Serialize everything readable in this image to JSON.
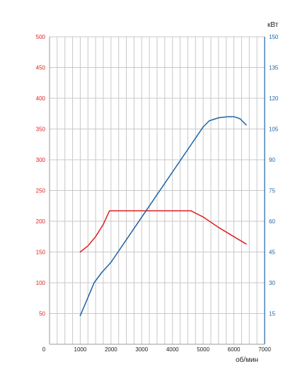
{
  "chart_data": {
    "type": "line",
    "title": "",
    "xlabel": "об/мин",
    "xlim": [
      0,
      7000
    ],
    "x_ticks": [
      "0",
      "1000",
      "2000",
      "3000",
      "4000",
      "5000",
      "6000",
      "7000"
    ],
    "y_left": {
      "label": "",
      "lim": [
        0,
        500
      ],
      "ticks": [
        "50",
        "100",
        "150",
        "200",
        "250",
        "300",
        "350",
        "400",
        "450",
        "500"
      ],
      "color": "#e02020"
    },
    "y_right": {
      "label": "кВт",
      "lim": [
        0,
        150
      ],
      "ticks": [
        "15",
        "30",
        "45",
        "60",
        "75",
        "90",
        "105",
        "120",
        "135",
        "150"
      ],
      "color": "#1f63a6"
    },
    "grid": true,
    "series": [
      {
        "axis": "left",
        "color": "#e02020",
        "x": [
          1000,
          1250,
          1500,
          1750,
          1950,
          2200,
          3000,
          4000,
          4500,
          4600,
          5000,
          5500,
          6000,
          6400
        ],
        "y": [
          150,
          160,
          175,
          195,
          217,
          217,
          217,
          217,
          217,
          217,
          207,
          190,
          175,
          163
        ]
      },
      {
        "axis": "right",
        "color": "#1f63a6",
        "x": [
          1000,
          1200,
          1450,
          1700,
          2000,
          2500,
          3000,
          3500,
          4000,
          4500,
          5000,
          5200,
          5500,
          5800,
          6000,
          6200,
          6400
        ],
        "y": [
          14,
          21,
          30,
          35,
          40,
          51,
          62,
          73,
          84,
          95,
          106,
          109,
          110.5,
          111,
          111,
          110,
          107
        ]
      }
    ]
  }
}
